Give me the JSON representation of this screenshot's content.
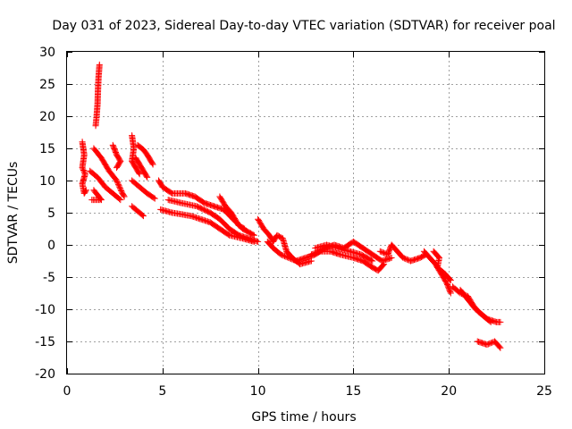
{
  "chart_data": {
    "type": "scatter",
    "title": "Day 031 of 2023, Sidereal Day-to-day VTEC variation (SDTVAR) for receiver poal",
    "xlabel": "GPS time / hours",
    "ylabel": "SDTVAR / TECUs",
    "xlim": [
      0,
      25
    ],
    "ylim": [
      -20,
      30
    ],
    "xticks": [
      0,
      5,
      10,
      15,
      20,
      25
    ],
    "yticks": [
      -20,
      -15,
      -10,
      -5,
      0,
      5,
      10,
      15,
      20,
      25,
      30
    ],
    "grid": true,
    "marker": "+",
    "color": "#ff0000",
    "series": [
      {
        "name": "s1",
        "points": [
          [
            1.5,
            18.5
          ],
          [
            1.55,
            20
          ],
          [
            1.6,
            22
          ],
          [
            1.62,
            24
          ],
          [
            1.65,
            26
          ],
          [
            1.7,
            28
          ]
        ]
      },
      {
        "name": "s2",
        "points": [
          [
            0.8,
            16
          ],
          [
            0.9,
            14
          ],
          [
            0.8,
            12
          ],
          [
            0.95,
            11
          ],
          [
            0.8,
            9.5
          ],
          [
            0.9,
            8
          ],
          [
            1.0,
            8.5
          ]
        ]
      },
      {
        "name": "s3",
        "points": [
          [
            1.4,
            15
          ],
          [
            1.8,
            13.5
          ],
          [
            2.2,
            11.5
          ],
          [
            2.6,
            10
          ],
          [
            2.9,
            8
          ],
          [
            3.0,
            7.5
          ]
        ]
      },
      {
        "name": "s4",
        "points": [
          [
            1.2,
            11.5
          ],
          [
            1.6,
            10.5
          ],
          [
            2.0,
            9
          ],
          [
            2.4,
            8
          ],
          [
            2.8,
            7
          ]
        ]
      },
      {
        "name": "s5",
        "points": [
          [
            1.4,
            8.5
          ],
          [
            1.8,
            7
          ],
          [
            1.3,
            7
          ]
        ]
      },
      {
        "name": "s6",
        "points": [
          [
            2.4,
            15.5
          ],
          [
            2.6,
            14
          ],
          [
            2.8,
            13
          ],
          [
            2.6,
            12
          ]
        ]
      },
      {
        "name": "s7",
        "points": [
          [
            3.4,
            17
          ],
          [
            3.5,
            15
          ],
          [
            3.4,
            13
          ],
          [
            3.6,
            12
          ],
          [
            3.8,
            11
          ]
        ]
      },
      {
        "name": "s8",
        "points": [
          [
            3.7,
            15.5
          ],
          [
            4.0,
            14.8
          ],
          [
            4.2,
            14
          ],
          [
            4.4,
            13
          ],
          [
            4.5,
            12.5
          ]
        ]
      },
      {
        "name": "s9",
        "points": [
          [
            3.6,
            13.5
          ],
          [
            3.8,
            12.5
          ],
          [
            4.0,
            11.5
          ],
          [
            4.2,
            10.5
          ]
        ]
      },
      {
        "name": "s10",
        "points": [
          [
            3.4,
            10
          ],
          [
            3.8,
            9
          ],
          [
            4.2,
            8
          ],
          [
            4.6,
            7.2
          ]
        ]
      },
      {
        "name": "s11",
        "points": [
          [
            3.4,
            6
          ],
          [
            3.8,
            5
          ],
          [
            4.0,
            4.5
          ]
        ]
      },
      {
        "name": "s12",
        "points": [
          [
            4.8,
            10
          ],
          [
            5.0,
            9
          ],
          [
            5.5,
            8
          ],
          [
            6.2,
            8
          ],
          [
            6.7,
            7.5
          ],
          [
            7.2,
            6.5
          ],
          [
            7.7,
            6
          ],
          [
            8.2,
            5.5
          ],
          [
            8.7,
            4
          ],
          [
            9.2,
            2.5
          ],
          [
            9.8,
            1.5
          ]
        ]
      },
      {
        "name": "s13",
        "points": [
          [
            5.3,
            7
          ],
          [
            6.0,
            6.5
          ],
          [
            6.8,
            6
          ],
          [
            7.5,
            5
          ],
          [
            8.0,
            4
          ],
          [
            8.5,
            2.5
          ],
          [
            9.0,
            1.5
          ],
          [
            9.5,
            1
          ],
          [
            10.0,
            0.5
          ]
        ]
      },
      {
        "name": "s14",
        "points": [
          [
            4.9,
            5.5
          ],
          [
            5.5,
            5
          ],
          [
            6.5,
            4.5
          ],
          [
            7.5,
            3.5
          ],
          [
            8.0,
            2.5
          ],
          [
            8.5,
            1.5
          ],
          [
            9.2,
            1
          ],
          [
            9.8,
            0.5
          ]
        ]
      },
      {
        "name": "s15",
        "points": [
          [
            8.0,
            7.5
          ],
          [
            8.3,
            6
          ],
          [
            8.6,
            5
          ],
          [
            9.0,
            3
          ],
          [
            9.3,
            2.5
          ]
        ]
      },
      {
        "name": "s16",
        "points": [
          [
            10.0,
            4
          ],
          [
            10.3,
            2.5
          ],
          [
            10.6,
            1.5
          ],
          [
            10.8,
            0.5
          ],
          [
            11.0,
            1.5
          ],
          [
            11.3,
            1
          ],
          [
            11.5,
            -1
          ],
          [
            11.8,
            -2
          ],
          [
            12.2,
            -3
          ],
          [
            12.8,
            -2.5
          ]
        ]
      },
      {
        "name": "s17",
        "points": [
          [
            10.5,
            0.5
          ],
          [
            10.8,
            -0.5
          ],
          [
            11.2,
            -1.5
          ],
          [
            11.6,
            -2
          ],
          [
            12.0,
            -2.5
          ],
          [
            12.5,
            -2
          ]
        ]
      },
      {
        "name": "s18",
        "points": [
          [
            12.5,
            -2
          ],
          [
            13.0,
            -1.5
          ],
          [
            13.5,
            -0.5
          ],
          [
            14.0,
            0
          ],
          [
            14.5,
            -0.5
          ],
          [
            15.0,
            0.5
          ],
          [
            15.5,
            -0.5
          ],
          [
            16.0,
            -1.5
          ],
          [
            16.5,
            -2.5
          ],
          [
            17.0,
            -2
          ]
        ]
      },
      {
        "name": "s19",
        "points": [
          [
            12.8,
            -1.5
          ],
          [
            13.3,
            -1
          ],
          [
            13.8,
            -1
          ],
          [
            14.3,
            -1.5
          ],
          [
            15.0,
            -2
          ],
          [
            15.5,
            -2.5
          ],
          [
            16.0,
            -3.5
          ],
          [
            16.3,
            -4
          ],
          [
            16.6,
            -3
          ]
        ]
      },
      {
        "name": "s20",
        "points": [
          [
            13.0,
            -0.5
          ],
          [
            13.6,
            0
          ],
          [
            14.2,
            -0.5
          ],
          [
            14.8,
            -1
          ],
          [
            15.4,
            -1.5
          ],
          [
            16.0,
            -2.5
          ]
        ]
      },
      {
        "name": "s21",
        "points": [
          [
            16.4,
            -1
          ],
          [
            16.8,
            -1.5
          ],
          [
            17.0,
            0
          ],
          [
            17.3,
            -1
          ],
          [
            17.6,
            -2
          ],
          [
            18.0,
            -2.5
          ],
          [
            18.5,
            -2
          ],
          [
            18.8,
            -1.5
          ]
        ]
      },
      {
        "name": "s22",
        "points": [
          [
            18.7,
            -1
          ],
          [
            19.0,
            -2
          ],
          [
            19.3,
            -3
          ],
          [
            19.6,
            -4.5
          ],
          [
            19.9,
            -6
          ],
          [
            20.1,
            -7.5
          ]
        ]
      },
      {
        "name": "s23",
        "points": [
          [
            19.2,
            -1
          ],
          [
            19.5,
            -2
          ],
          [
            19.4,
            -3.5
          ],
          [
            19.8,
            -4.5
          ],
          [
            20.1,
            -5.5
          ]
        ]
      },
      {
        "name": "s24",
        "points": [
          [
            20.2,
            -6.5
          ],
          [
            20.6,
            -7.5
          ],
          [
            21.0,
            -8
          ],
          [
            21.3,
            -9.5
          ],
          [
            21.6,
            -10.5
          ],
          [
            22.0,
            -11.5
          ],
          [
            22.5,
            -12
          ],
          [
            22.7,
            -12
          ]
        ]
      },
      {
        "name": "s25",
        "points": [
          [
            20.6,
            -7
          ],
          [
            21.0,
            -8.5
          ],
          [
            21.4,
            -10
          ],
          [
            21.8,
            -11
          ],
          [
            22.2,
            -12
          ]
        ]
      },
      {
        "name": "s26",
        "points": [
          [
            21.5,
            -15
          ],
          [
            22.0,
            -15.5
          ],
          [
            22.4,
            -15
          ],
          [
            22.7,
            -16
          ]
        ]
      }
    ]
  }
}
